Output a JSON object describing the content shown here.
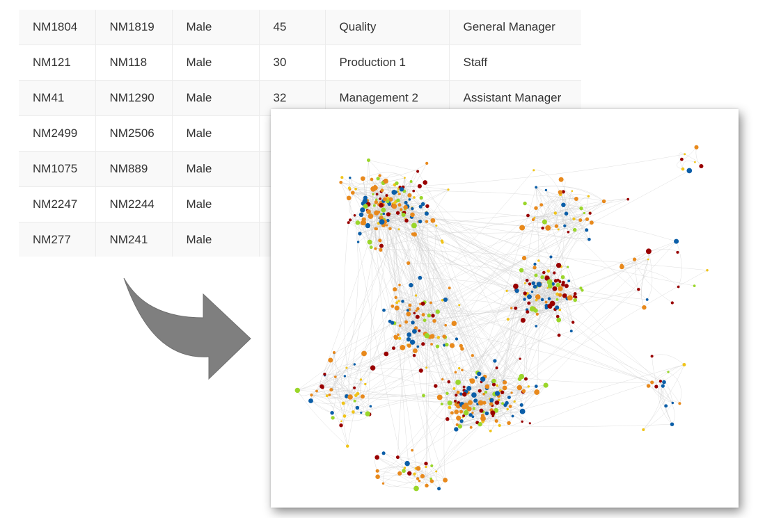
{
  "table": {
    "rows": [
      [
        "NM1804",
        "NM1819",
        "Male",
        "45",
        "Quality",
        "General Manager"
      ],
      [
        "NM121",
        "NM118",
        "Male",
        "30",
        "Production 1",
        "Staff"
      ],
      [
        "NM41",
        "NM1290",
        "Male",
        "32",
        "Management 2",
        "Assistant Manager"
      ],
      [
        "NM2499",
        "NM2506",
        "Male",
        "",
        "",
        ""
      ],
      [
        "NM1075",
        "NM889",
        "Male",
        "",
        "",
        ""
      ],
      [
        "NM2247",
        "NM2244",
        "Male",
        "",
        "",
        ""
      ],
      [
        "NM277",
        "NM241",
        "Male",
        "",
        "",
        ""
      ]
    ]
  },
  "arrow": {
    "icon": "curved-arrow-right-icon",
    "color": "#7f7f7f"
  },
  "network": {
    "node_colors": [
      "#990000",
      "#0b5ea8",
      "#e8891c",
      "#f0c419",
      "#9ad62a"
    ],
    "edge_color": "#cccccc"
  }
}
